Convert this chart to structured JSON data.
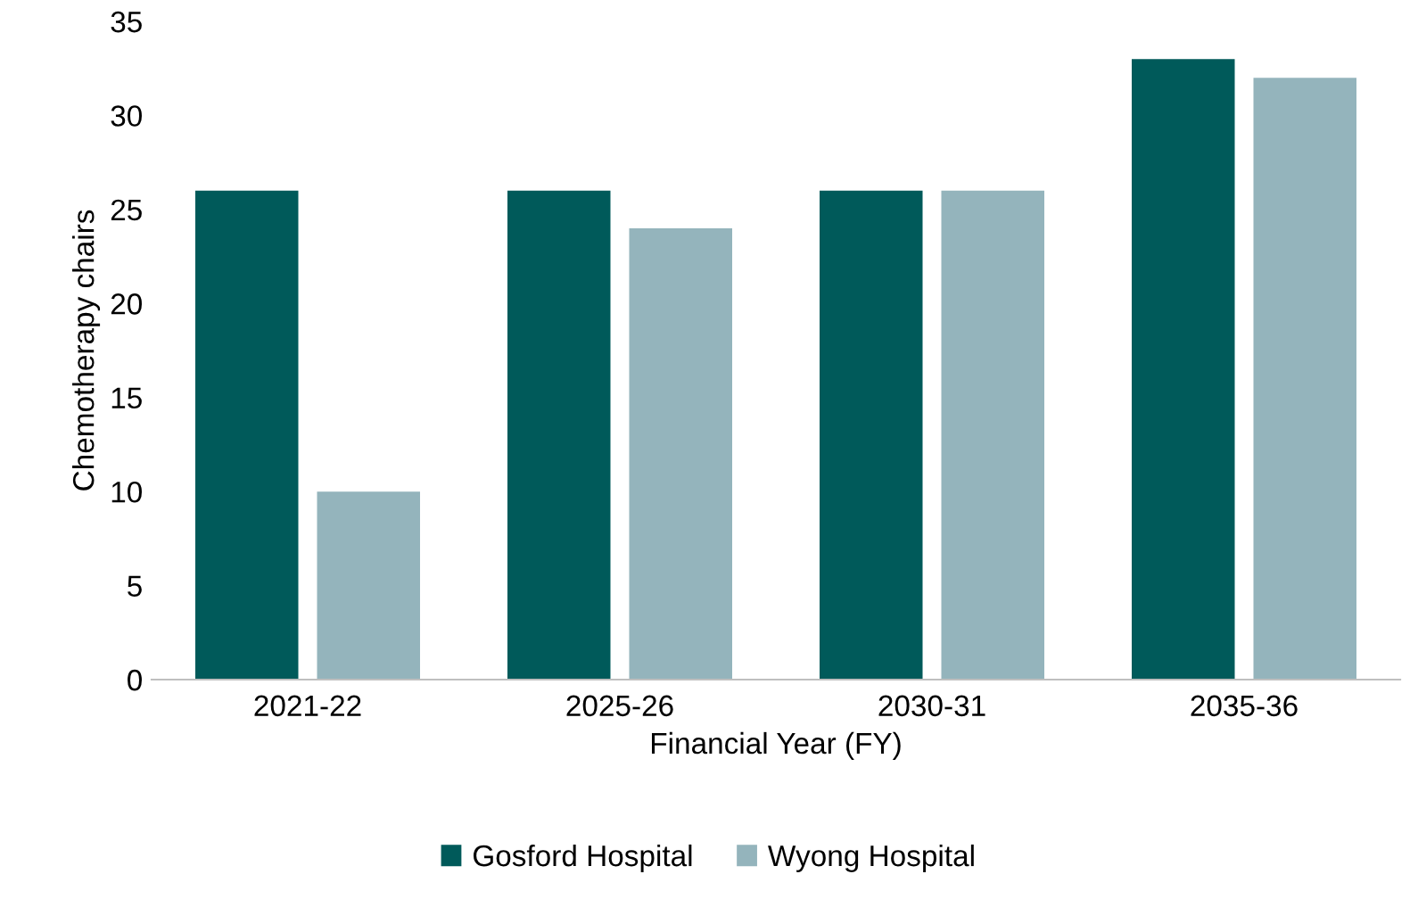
{
  "chart_data": {
    "type": "bar",
    "xlabel": "Financial Year (FY)",
    "ylabel": "Chemotherapy chairs",
    "categories": [
      "2021-22",
      "2025-26",
      "2030-31",
      "2035-36"
    ],
    "series": [
      {
        "name": "Gosford Hospital",
        "color": "#005a5a",
        "values": [
          26,
          26,
          26,
          33
        ]
      },
      {
        "name": "Wyong Hospital",
        "color": "#94b4bc",
        "values": [
          10,
          24,
          26,
          32
        ]
      }
    ],
    "ylim": [
      0,
      35
    ],
    "yticks": [
      0,
      5,
      10,
      15,
      20,
      25,
      30,
      35
    ],
    "grid": false,
    "legend": "bottom"
  }
}
